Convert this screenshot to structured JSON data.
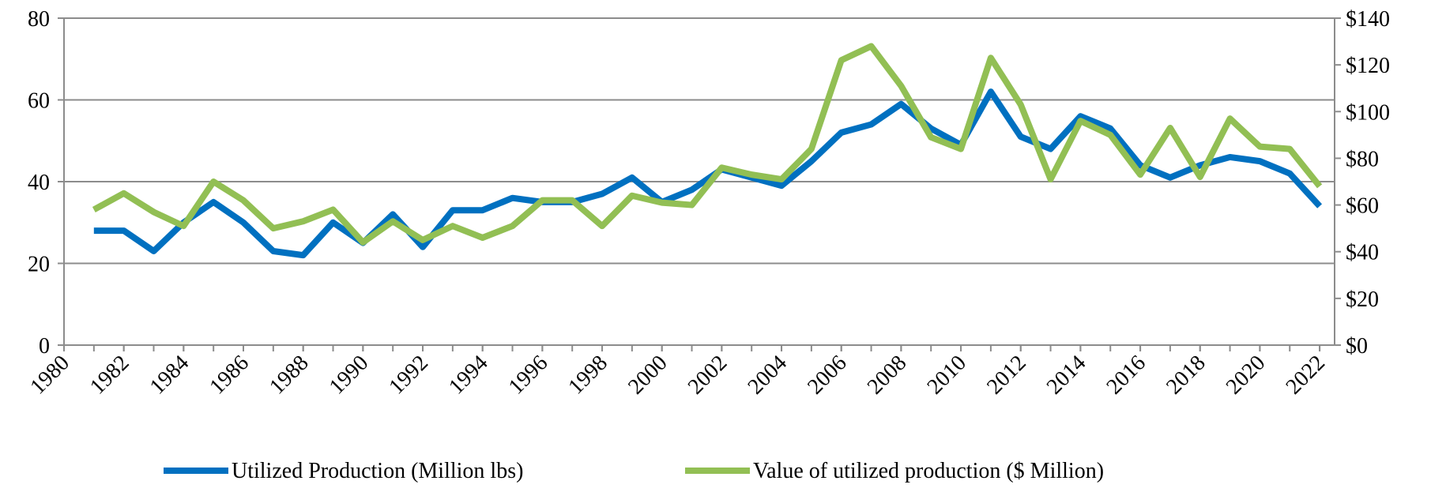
{
  "chart_data": {
    "type": "line",
    "x": [
      1981,
      1982,
      1983,
      1984,
      1985,
      1986,
      1987,
      1988,
      1989,
      1990,
      1991,
      1992,
      1993,
      1994,
      1995,
      1996,
      1997,
      1998,
      1999,
      2000,
      2001,
      2002,
      2003,
      2004,
      2005,
      2006,
      2007,
      2008,
      2009,
      2010,
      2011,
      2012,
      2013,
      2014,
      2015,
      2016,
      2017,
      2018,
      2019,
      2020,
      2021,
      2022
    ],
    "series": [
      {
        "name": "Utilized Production (Million lbs)",
        "color": "#0070c0",
        "values": [
          28,
          28,
          23,
          30,
          35,
          30,
          23,
          22,
          30,
          25,
          32,
          24,
          33,
          33,
          36,
          35,
          35,
          37,
          41,
          35,
          38,
          43,
          41,
          39,
          45,
          52,
          54,
          59,
          53,
          49,
          62,
          51,
          48,
          56,
          53,
          44,
          41,
          44,
          46,
          45,
          42,
          34
        ]
      },
      {
        "name": "Value of utilized production ($ Million)",
        "color": "#92bf54",
        "axis": "y2",
        "values": [
          58,
          65,
          57,
          51,
          70,
          62,
          50,
          53,
          58,
          44,
          53,
          45,
          51,
          46,
          51,
          62,
          62,
          51,
          64,
          61,
          60,
          76,
          73,
          71,
          84,
          122,
          128,
          111,
          89,
          84,
          123,
          103,
          71,
          96,
          90,
          73,
          93,
          72,
          97,
          85,
          84,
          68
        ]
      }
    ],
    "xlim": [
      1980,
      2022.5
    ],
    "xticks": [
      1980,
      1982,
      1984,
      1986,
      1988,
      1990,
      1992,
      1994,
      1996,
      1998,
      2000,
      2002,
      2004,
      2006,
      2008,
      2010,
      2012,
      2014,
      2016,
      2018,
      2020,
      2022
    ],
    "ylim": [
      0,
      80
    ],
    "yticks": [
      0,
      20,
      40,
      60,
      80
    ],
    "y2lim": [
      0,
      140
    ],
    "y2ticks": [
      {
        "value": 0,
        "label": "$0"
      },
      {
        "value": 20,
        "label": "$20"
      },
      {
        "value": 40,
        "label": "$40"
      },
      {
        "value": 60,
        "label": "$60"
      },
      {
        "value": 80,
        "label": "$80"
      },
      {
        "value": 100,
        "label": "$100"
      },
      {
        "value": 120,
        "label": "$120"
      },
      {
        "value": 140,
        "label": "$140"
      }
    ],
    "grid": true,
    "legend": "bottom"
  }
}
